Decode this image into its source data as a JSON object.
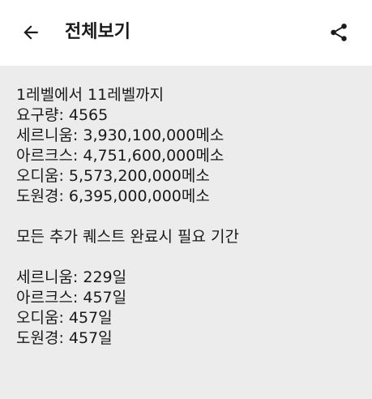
{
  "header": {
    "title": "전체보기",
    "back_icon": "arrow-left-icon",
    "share_icon": "share-icon"
  },
  "content": {
    "section1": [
      "1레벨에서 11레벨까지",
      "요구량: 4565",
      "세르니움: 3,930,100,000메소",
      "아르크스: 4,751,600,000메소",
      "오디움: 5,573,200,000메소",
      "도원경: 6,395,000,000메소"
    ],
    "section2_title": "모든 추가 퀘스트 완료시 필요 기간",
    "section3": [
      "세르니움: 229일",
      "아르크스: 457일",
      "오디움: 457일",
      "도원경: 457일"
    ]
  },
  "colors": {
    "header_bg": "#ffffff",
    "body_bg": "#ececec",
    "text": "#1a1a1a"
  }
}
